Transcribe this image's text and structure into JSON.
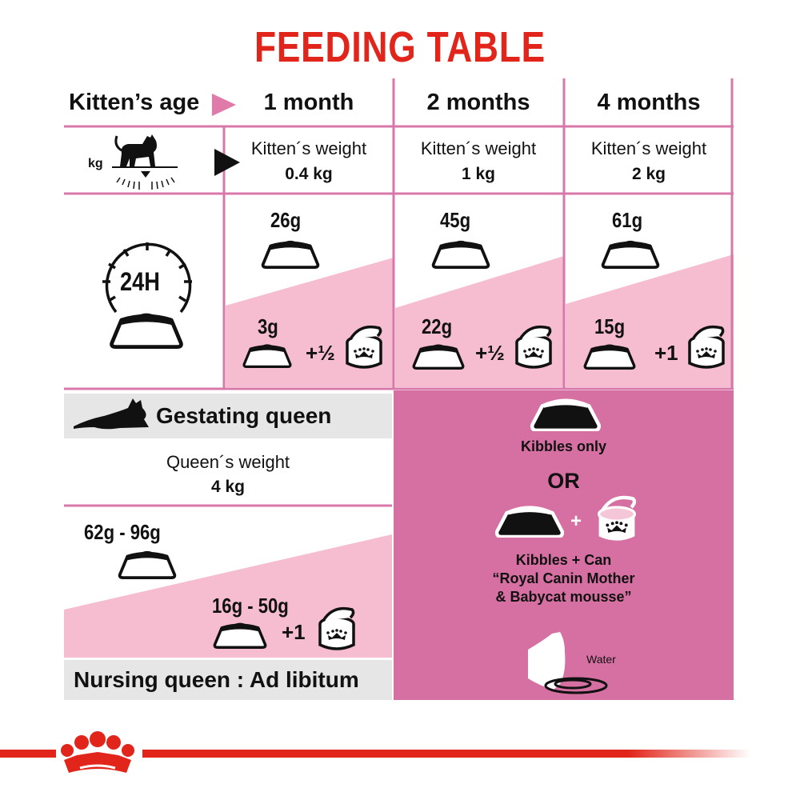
{
  "title": "FEEDING TABLE",
  "colors": {
    "title_red": "#e1251b",
    "grid_pink": "#d877a9",
    "light_pink": "#f6bdd1",
    "panel_magenta": "#d670a2",
    "grey_bar": "#e6e6e6"
  },
  "header": {
    "row_label": "Kitten’s age",
    "columns": [
      "1 month",
      "2 months",
      "4 months"
    ]
  },
  "weight_row": {
    "unit_label": "kg",
    "icon": "kitten-on-scale-icon",
    "cells": [
      {
        "label": "Kitten´s weight",
        "value": "0.4 kg"
      },
      {
        "label": "Kitten´s weight",
        "value": "1 kg"
      },
      {
        "label": "Kitten´s weight",
        "value": "2 kg"
      }
    ]
  },
  "ration_row": {
    "clock_label": "24H",
    "cells": [
      {
        "kibbles_only": "26g",
        "mixed_kibbles": "3g",
        "mixed_can": "+½"
      },
      {
        "kibbles_only": "45g",
        "mixed_kibbles": "22g",
        "mixed_can": "+½"
      },
      {
        "kibbles_only": "61g",
        "mixed_kibbles": "15g",
        "mixed_can": "+1"
      }
    ]
  },
  "gestating": {
    "title": "Gestating queen",
    "weight_label": "Queen´s weight",
    "weight_value": "4 kg",
    "kibbles_only": "62g - 96g",
    "mixed_kibbles": "16g - 50g",
    "mixed_can": "+1"
  },
  "nursing": {
    "title": "Nursing queen : Ad libitum"
  },
  "legend_panel": {
    "kibbles_only": "Kibbles only",
    "or": "OR",
    "plus": "+",
    "kibbles_can": "Kibbles + Can",
    "product_line1": "“Royal Canin Mother",
    "product_line2": "& Babycat mousse”",
    "water": "Water"
  },
  "brand": {
    "logo": "royal-canin-crown-logo"
  }
}
